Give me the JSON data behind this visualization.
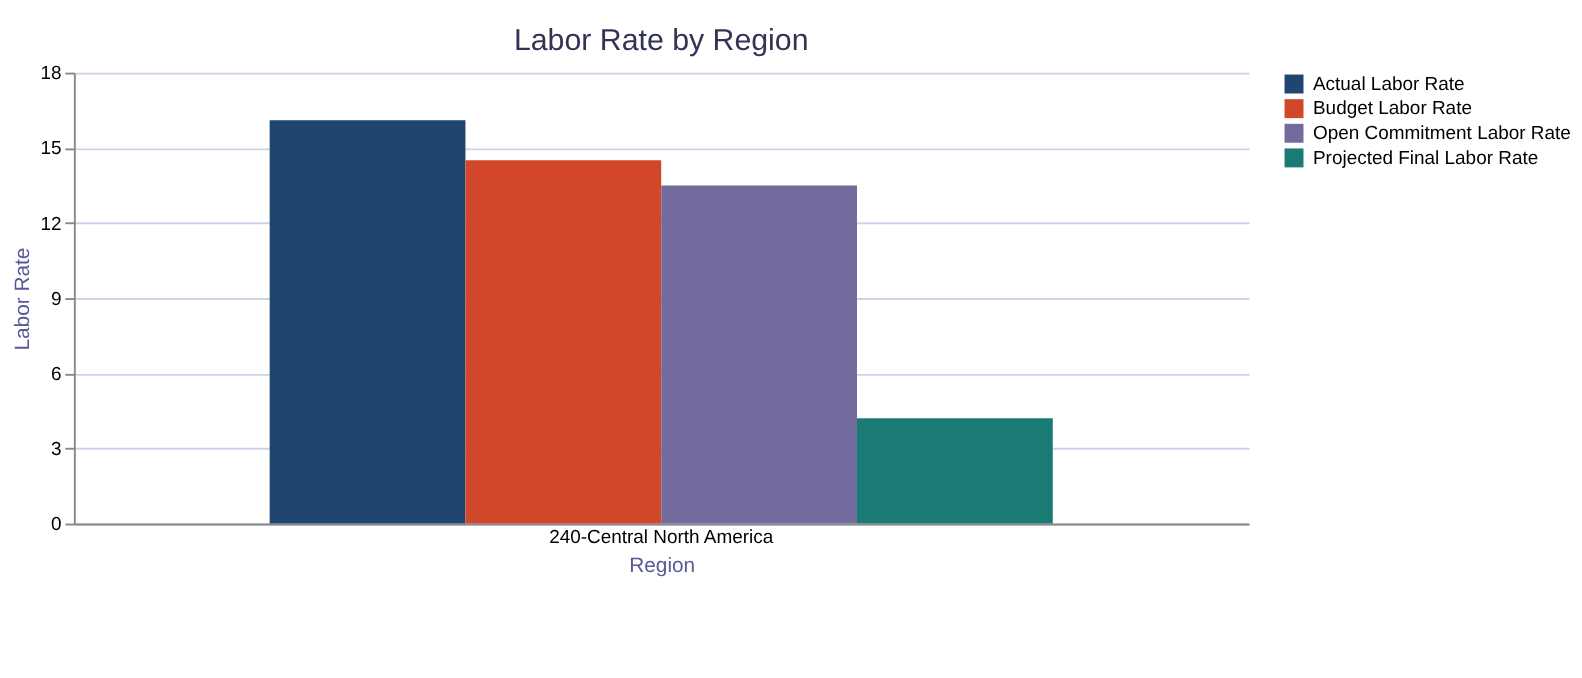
{
  "chart_data": {
    "type": "bar",
    "title": "Labor Rate by Region",
    "xlabel": "Region",
    "ylabel": "Labor Rate",
    "categories": [
      "240-Central North America"
    ],
    "series": [
      {
        "name": "Actual Labor Rate",
        "color": "#1f4570",
        "values": [
          16.1
        ]
      },
      {
        "name": "Budget Labor Rate",
        "color": "#d2472a",
        "values": [
          14.5
        ]
      },
      {
        "name": "Open Commitment Labor Rate",
        "color": "#726c9e",
        "values": [
          13.5
        ]
      },
      {
        "name": "Projected Final Labor Rate",
        "color": "#1a7a74",
        "values": [
          4.2
        ]
      }
    ],
    "ylim": [
      0,
      18
    ],
    "yticks": [
      0,
      3,
      6,
      9,
      12,
      15,
      18
    ],
    "grid": "y",
    "legend": "right"
  }
}
